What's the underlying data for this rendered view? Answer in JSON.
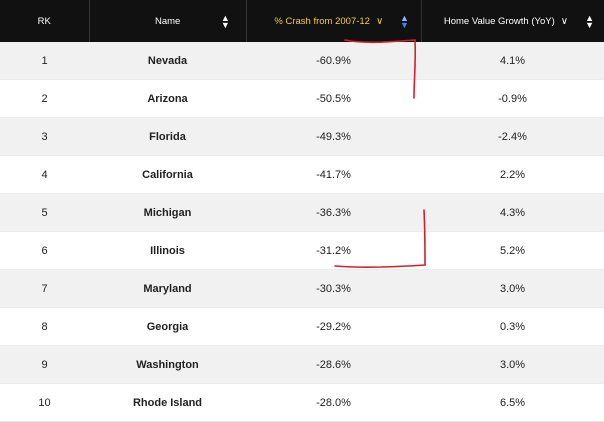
{
  "headers": {
    "rank": "RK",
    "name": "Name",
    "crash": "% Crash from 2007-12",
    "growth": "Home Value Growth (YoY)"
  },
  "icons": {
    "sort": "sort-icon",
    "chevron": "chevron-down-icon"
  },
  "colors": {
    "header_bg": "#111111",
    "active_sort": "#f0d030",
    "annotation": "#d61f2b"
  },
  "rows": [
    {
      "rank": "1",
      "name": "Nevada",
      "crash": "-60.9%",
      "growth": "4.1%"
    },
    {
      "rank": "2",
      "name": "Arizona",
      "crash": "-50.5%",
      "growth": "-0.9%"
    },
    {
      "rank": "3",
      "name": "Florida",
      "crash": "-49.3%",
      "growth": "-2.4%"
    },
    {
      "rank": "4",
      "name": "California",
      "crash": "-41.7%",
      "growth": "2.2%"
    },
    {
      "rank": "5",
      "name": "Michigan",
      "crash": "-36.3%",
      "growth": "4.3%"
    },
    {
      "rank": "6",
      "name": "Illinois",
      "crash": "-31.2%",
      "growth": "5.2%"
    },
    {
      "rank": "7",
      "name": "Maryland",
      "crash": "-30.3%",
      "growth": "3.0%"
    },
    {
      "rank": "8",
      "name": "Georgia",
      "crash": "-29.2%",
      "growth": "0.3%"
    },
    {
      "rank": "9",
      "name": "Washington",
      "crash": "-28.6%",
      "growth": "3.0%"
    },
    {
      "rank": "10",
      "name": "Rhode Island",
      "crash": "-28.0%",
      "growth": "6.5%"
    }
  ]
}
